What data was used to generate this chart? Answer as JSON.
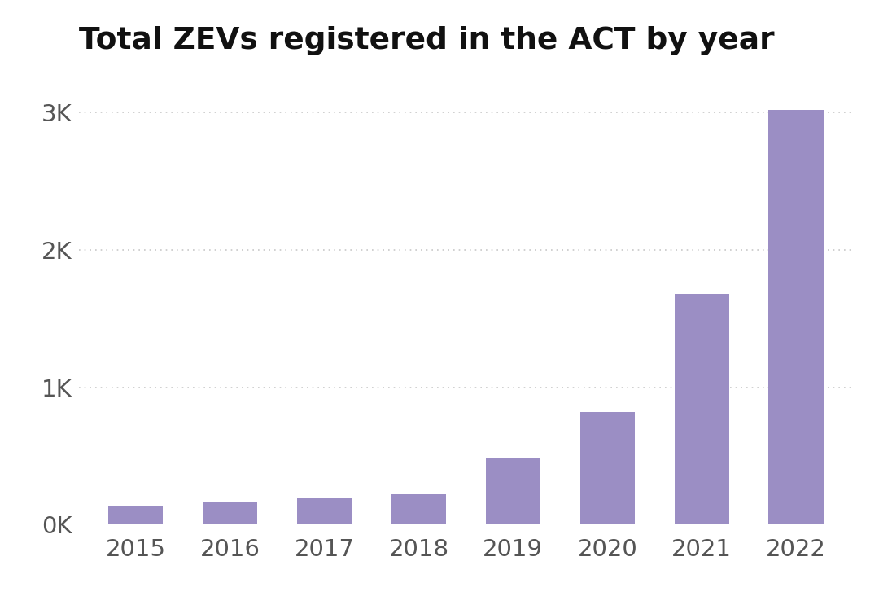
{
  "title": "Total ZEVs registered in the ACT by year",
  "categories": [
    "2015",
    "2016",
    "2017",
    "2018",
    "2019",
    "2020",
    "2021",
    "2022"
  ],
  "values": [
    130,
    160,
    190,
    220,
    490,
    820,
    1680,
    3020
  ],
  "bar_color": "#9b8ec4",
  "background_color": "#ffffff",
  "figure_bg": "#f0f0f5",
  "title_fontsize": 27,
  "tick_fontsize": 21,
  "ylim": [
    0,
    3300
  ],
  "yticks": [
    0,
    1000,
    2000,
    3000
  ],
  "ytick_labels": [
    "0K",
    "1K",
    "2K",
    "3K"
  ],
  "grid_color": "#c8c8c8",
  "title_color": "#111111",
  "tick_color": "#555555",
  "bar_width": 0.58
}
